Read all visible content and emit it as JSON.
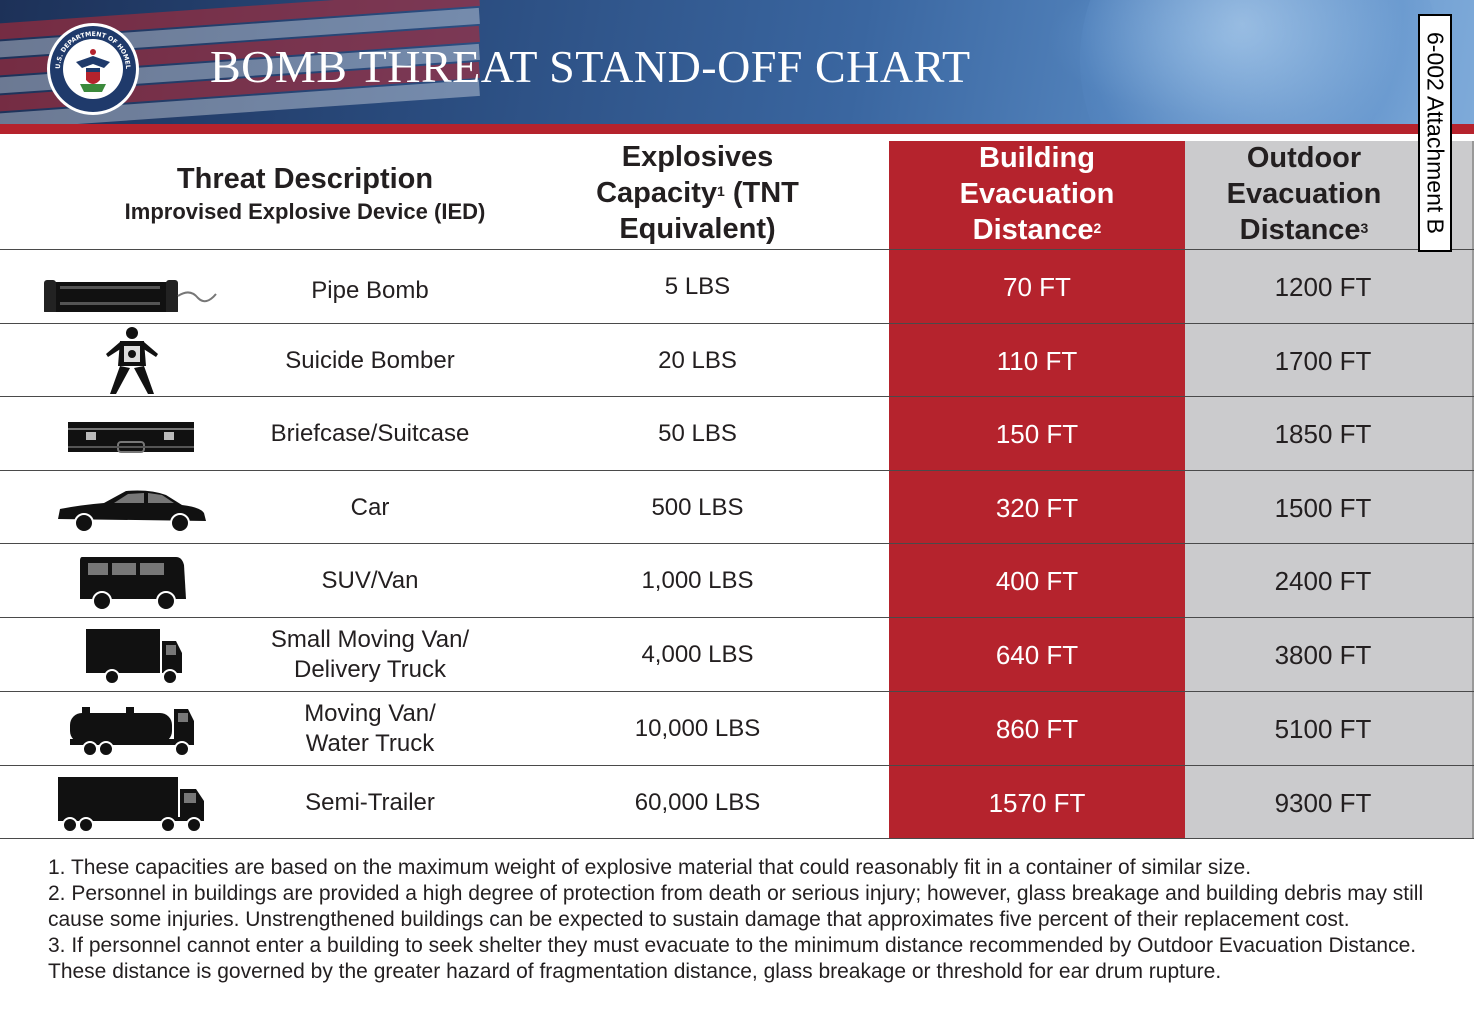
{
  "header": {
    "title": "BOMB THREAT STAND-OFF CHART",
    "seal_text": "U.S. DEPARTMENT OF HOMELAND SECURITY",
    "attachment_tab": "6-002 Attachment B"
  },
  "table": {
    "columns": {
      "threat_title": "Threat Description",
      "threat_subtitle": "Improvised Explosive Device (IED)",
      "explosives": "Explosives Capacity",
      "explosives_note": "1",
      "explosives_suffix": "(TNT Equivalent)",
      "building_line1": "Building",
      "building_line2": "Evacuation",
      "building_line3": "Distance",
      "building_note": "2",
      "outdoor_line1": "Outdoor",
      "outdoor_line2": "Evacuation",
      "outdoor_line3": "Distance",
      "outdoor_note": "3"
    },
    "rows": [
      {
        "icon": "pipe-bomb-icon",
        "name_line1": "Pipe Bomb",
        "name_line2": "",
        "capacity": "5 LBS",
        "building": "70 FT",
        "outdoor": "1200 FT"
      },
      {
        "icon": "suicide-bomber-icon",
        "name_line1": "Suicide Bomber",
        "name_line2": "",
        "capacity": "20 LBS",
        "building": "110 FT",
        "outdoor": "1700 FT"
      },
      {
        "icon": "briefcase-icon",
        "name_line1": "Briefcase/Suitcase",
        "name_line2": "",
        "capacity": "50 LBS",
        "building": "150 FT",
        "outdoor": "1850 FT"
      },
      {
        "icon": "car-icon",
        "name_line1": "Car",
        "name_line2": "",
        "capacity": "500 LBS",
        "building": "320 FT",
        "outdoor": "1500 FT"
      },
      {
        "icon": "van-icon",
        "name_line1": "SUV/Van",
        "name_line2": "",
        "capacity": "1,000 LBS",
        "building": "400 FT",
        "outdoor": "2400 FT"
      },
      {
        "icon": "delivery-truck-icon",
        "name_line1": "Small Moving Van/",
        "name_line2": "Delivery Truck",
        "capacity": "4,000 LBS",
        "building": "640 FT",
        "outdoor": "3800 FT"
      },
      {
        "icon": "water-truck-icon",
        "name_line1": "Moving Van/",
        "name_line2": "Water Truck",
        "capacity": "10,000 LBS",
        "building": "860 FT",
        "outdoor": "5100 FT"
      },
      {
        "icon": "semi-trailer-icon",
        "name_line1": "Semi-Trailer",
        "name_line2": "",
        "capacity": "60,000 LBS",
        "building": "1570 FT",
        "outdoor": "9300 FT"
      }
    ]
  },
  "footnotes": [
    "1. These capacities are based on the maximum weight of explosive material that could reasonably fit in a container of similar size.",
    "2. Personnel in buildings are provided a high degree of protection from death or serious injury; however,  glass breakage and building debris may still cause some injuries. Unstrengthened buildings can be expected to sustain damage that approximates five percent of their replacement cost.",
    "3.  If personnel cannot enter a building to seek shelter they must evacuate to the minimum distance recommended by Outdoor Evacuation Distance. These distance is governed by the greater hazard of fragmentation distance, glass breakage or threshold for ear drum rupture."
  ],
  "colors": {
    "building_column": "#b5232d",
    "outdoor_column": "#cbcbcd",
    "banner": "#294a7c"
  }
}
